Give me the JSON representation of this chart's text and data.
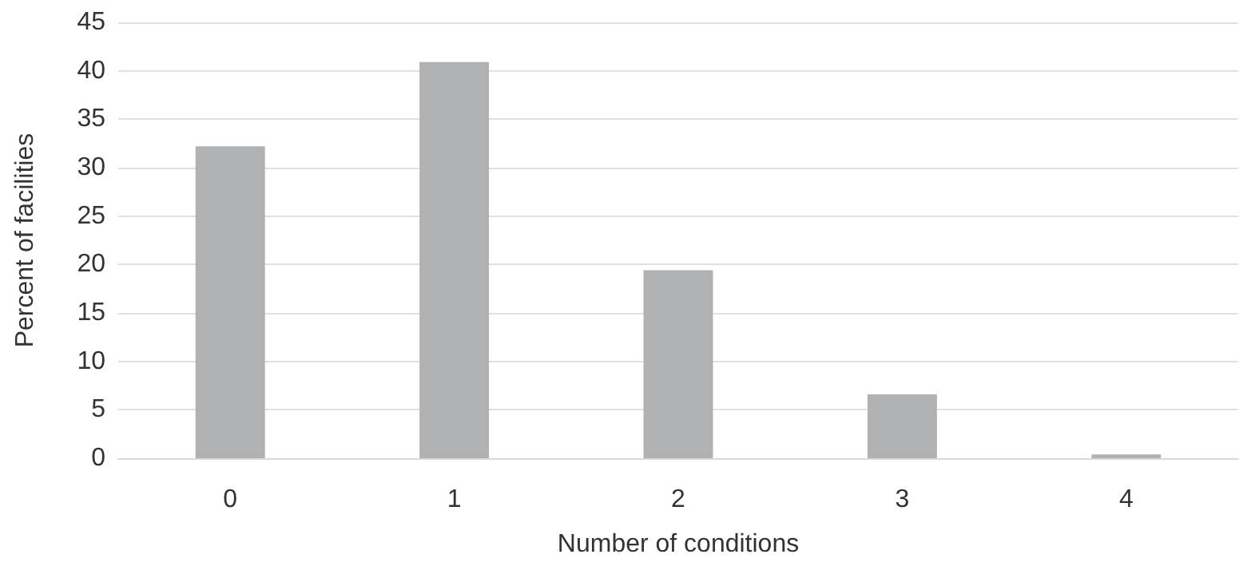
{
  "chart_data": {
    "type": "bar",
    "xlabel": "Number of conditions",
    "ylabel": "Percent of facilities",
    "categories": [
      "0",
      "1",
      "2",
      "3",
      "4"
    ],
    "values": [
      32.2,
      40.9,
      19.4,
      6.6,
      0.4
    ],
    "color": "#b0b1b3",
    "ylim": [
      0,
      45
    ],
    "yticks": [
      0,
      5,
      10,
      15,
      20,
      25,
      30,
      35,
      40,
      45
    ],
    "grid": "y"
  }
}
